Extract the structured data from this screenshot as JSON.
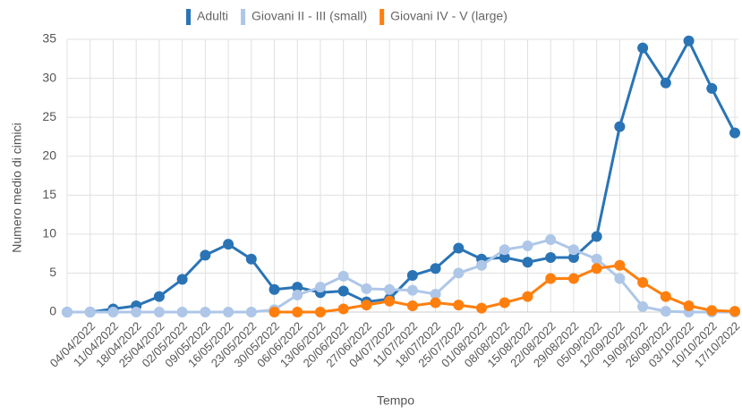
{
  "chart_data": {
    "type": "line",
    "xlabel": "Tempo",
    "ylabel": "Numero medio di cimici",
    "categories": [
      null,
      "04/04/2022",
      "11/04/2022",
      "18/04/2022",
      "25/04/2022",
      "02/05/2022",
      "09/05/2022",
      "16/05/2022",
      "23/05/2022",
      "30/05/2022",
      "06/06/2022",
      "13/06/2022",
      "20/06/2022",
      "27/06/2022",
      "04/07/2022",
      "11/07/2022",
      "18/07/2022",
      "25/07/2022",
      "01/08/2022",
      "08/08/2022",
      "15/08/2022",
      "22/08/2022",
      "29/08/2022",
      "05/09/2022",
      "12/09/2022",
      "19/09/2022",
      "26/09/2022",
      "03/10/2022",
      "10/10/2022",
      "17/10/2022"
    ],
    "series": [
      {
        "name": "Adulti",
        "color": "#2a74b5",
        "values": [
          0,
          0,
          0.4,
          0.8,
          2,
          4.2,
          7.3,
          8.7,
          6.8,
          2.9,
          3.2,
          2.5,
          2.7,
          1.3,
          1.7,
          4.7,
          5.6,
          8.2,
          6.8,
          7.0,
          6.4,
          7.0,
          7.0,
          9.7,
          23.8,
          33.9,
          29.4,
          34.8,
          28.7,
          23.0
        ]
      },
      {
        "name": "Giovani II - III (small)",
        "color": "#aec7e8",
        "values": [
          0,
          0,
          0,
          0,
          0,
          0,
          0,
          0,
          0,
          0.3,
          2.2,
          3.2,
          4.6,
          3.0,
          2.9,
          2.8,
          2.3,
          5.0,
          6.0,
          8.0,
          8.5,
          9.3,
          8.0,
          6.8,
          4.3,
          0.7,
          0.1,
          0,
          0,
          0
        ]
      },
      {
        "name": "Giovani IV - V (large)",
        "color": "#ff7f0e",
        "values": [
          null,
          null,
          null,
          null,
          null,
          null,
          null,
          null,
          null,
          0,
          0,
          0,
          0.4,
          0.9,
          1.4,
          0.8,
          1.2,
          0.9,
          0.5,
          1.2,
          2.0,
          4.3,
          4.3,
          5.6,
          6.0,
          3.8,
          2.0,
          0.8,
          0.2,
          0.1
        ]
      }
    ],
    "ylim": [
      0,
      35
    ],
    "yticks": [
      0,
      5,
      10,
      15,
      20,
      25,
      30,
      35
    ],
    "grid": true,
    "legend": "top"
  }
}
